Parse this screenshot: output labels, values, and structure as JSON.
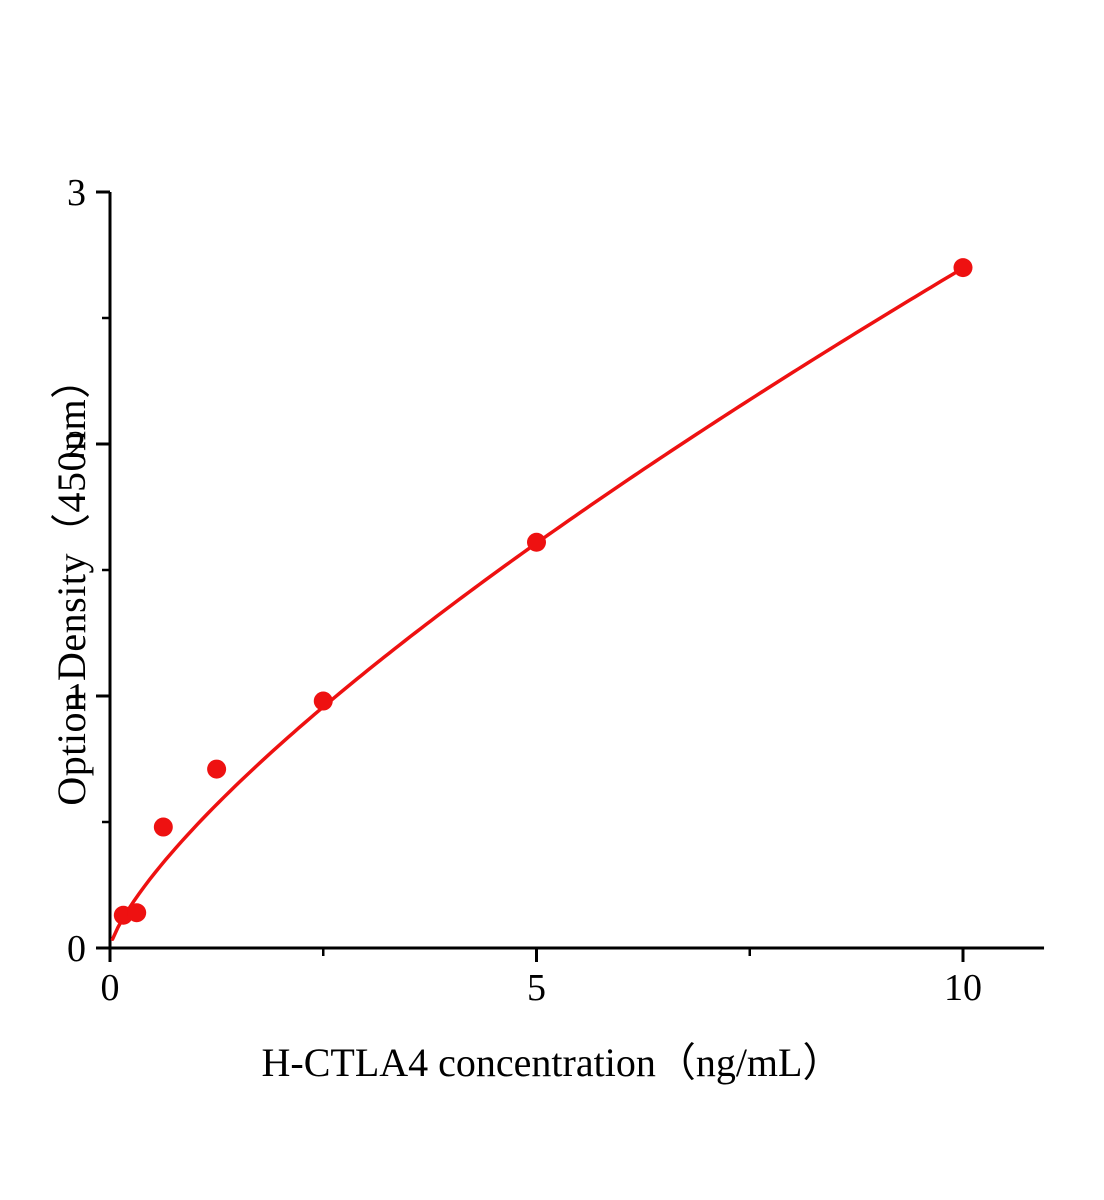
{
  "chart_data": {
    "type": "scatter",
    "title": "",
    "xlabel": "H-CTLA4 concentration（ng/mL）",
    "ylabel": "Option Density（450nm）",
    "x_ticks": [
      0,
      5,
      10
    ],
    "x_minor_ticks": [
      2.5,
      7.5
    ],
    "y_ticks": [
      0,
      1,
      2,
      3
    ],
    "y_minor_ticks": [
      0.5,
      1.5,
      2.5
    ],
    "xlim": [
      0,
      10.95
    ],
    "ylim": [
      0,
      3
    ],
    "grid": false,
    "legend": "none",
    "points": [
      {
        "x": 0.156,
        "y": 0.13
      },
      {
        "x": 0.313,
        "y": 0.14
      },
      {
        "x": 0.625,
        "y": 0.48
      },
      {
        "x": 1.25,
        "y": 0.71
      },
      {
        "x": 2.5,
        "y": 0.98
      },
      {
        "x": 5,
        "y": 1.61
      },
      {
        "x": 10,
        "y": 2.7
      }
    ],
    "fit_curve": {
      "type": "power",
      "a": 0.482,
      "b": 0.748,
      "x_start": 0.03,
      "x_end": 10
    },
    "colors": {
      "series": "#ee1111",
      "axis": "#000000",
      "background": "#ffffff"
    }
  }
}
